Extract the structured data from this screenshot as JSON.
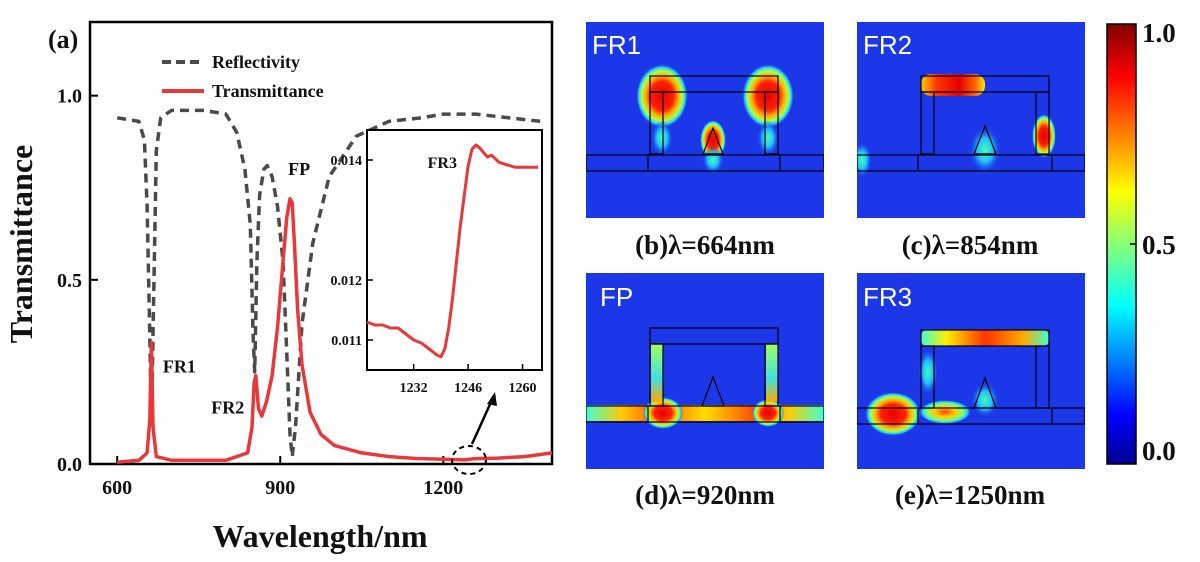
{
  "chart_data": [
    {
      "panel": "(a)",
      "type": "line",
      "xlabel": "Wavelength/nm",
      "ylabel": "Transmittance",
      "xlim": [
        550,
        1400
      ],
      "ylim": [
        0,
        1.2
      ],
      "xticks": [
        600,
        900,
        1200
      ],
      "xtick_labels": [
        "600",
        "900",
        "1200"
      ],
      "yticks": [
        0,
        0.5,
        1.0
      ],
      "ytick_labels": [
        "0.0",
        "0.5",
        "1.0"
      ],
      "legend_position": "top-left",
      "series": [
        {
          "name": "Reflectivity",
          "style": "dashed",
          "color": "#4a4a4a",
          "x": [
            600,
            640,
            650,
            655,
            660,
            663,
            666,
            672,
            680,
            700,
            760,
            800,
            820,
            835,
            845,
            850,
            853,
            857,
            862,
            870,
            876,
            885,
            895,
            905,
            912,
            918,
            922,
            928,
            940,
            960,
            990,
            1040,
            1100,
            1160,
            1200,
            1260,
            1320,
            1380
          ],
          "values": [
            0.94,
            0.93,
            0.88,
            0.7,
            0.35,
            0.1,
            0.35,
            0.85,
            0.94,
            0.96,
            0.96,
            0.95,
            0.9,
            0.8,
            0.65,
            0.35,
            0.25,
            0.55,
            0.73,
            0.8,
            0.81,
            0.78,
            0.7,
            0.55,
            0.3,
            0.08,
            0.02,
            0.1,
            0.38,
            0.6,
            0.78,
            0.89,
            0.93,
            0.94,
            0.95,
            0.95,
            0.94,
            0.93
          ]
        },
        {
          "name": "Transmittance",
          "style": "solid",
          "color": "#e8383a",
          "x": [
            600,
            640,
            655,
            660,
            663,
            666,
            672,
            700,
            800,
            840,
            848,
            852,
            855,
            860,
            866,
            875,
            885,
            895,
            905,
            912,
            918,
            922,
            926,
            932,
            940,
            955,
            975,
            1000,
            1050,
            1100,
            1150,
            1200,
            1240,
            1255,
            1300,
            1350,
            1400
          ],
          "values": [
            0.005,
            0.01,
            0.03,
            0.12,
            0.33,
            0.1,
            0.02,
            0.01,
            0.01,
            0.03,
            0.1,
            0.22,
            0.24,
            0.15,
            0.13,
            0.17,
            0.24,
            0.37,
            0.55,
            0.67,
            0.72,
            0.71,
            0.6,
            0.42,
            0.27,
            0.14,
            0.08,
            0.05,
            0.03,
            0.02,
            0.015,
            0.013,
            0.011,
            0.0142,
            0.016,
            0.02,
            0.03
          ]
        }
      ],
      "annotations": [
        {
          "text": "FR1",
          "x": 663,
          "y": 0.33
        },
        {
          "text": "FR2",
          "x": 855,
          "y": 0.24
        },
        {
          "text": "FP",
          "x": 920,
          "y": 0.72
        }
      ]
    },
    {
      "panel": "inset",
      "type": "line",
      "xlim": [
        1220,
        1265
      ],
      "ylim": [
        0.0105,
        0.0145
      ],
      "xticks": [
        1232,
        1246,
        1260
      ],
      "xtick_labels": [
        "1232",
        "1246",
        "1260"
      ],
      "yticks": [
        0.011,
        0.012,
        0.014
      ],
      "ytick_labels": [
        "0.011",
        "0.012",
        "0.014"
      ],
      "series": [
        {
          "name": "Transmittance",
          "color": "#e8383a",
          "x": [
            1220,
            1222,
            1224,
            1226,
            1228,
            1230,
            1232,
            1234,
            1236,
            1238,
            1239,
            1240,
            1241,
            1242,
            1243,
            1244,
            1245,
            1246,
            1247,
            1248,
            1249,
            1250,
            1251,
            1252,
            1253,
            1254,
            1256,
            1258,
            1260,
            1262,
            1264
          ],
          "values": [
            0.0113,
            0.01125,
            0.01125,
            0.0112,
            0.0112,
            0.0111,
            0.011,
            0.01095,
            0.01085,
            0.01075,
            0.01072,
            0.01085,
            0.0112,
            0.0117,
            0.0123,
            0.0129,
            0.0134,
            0.0139,
            0.01418,
            0.01425,
            0.0142,
            0.01412,
            0.01405,
            0.01408,
            0.01402,
            0.01396,
            0.01392,
            0.01388,
            0.01388,
            0.01388,
            0.01388
          ]
        }
      ],
      "annotations": [
        {
          "text": "FR3",
          "x": 1244,
          "y": 0.0139
        }
      ]
    },
    {
      "panel": "field-maps",
      "type": "heatmap",
      "colorbar": {
        "min": 0,
        "max": 1,
        "tick_labels": [
          "1.0",
          "0.5",
          "0.0"
        ]
      },
      "maps": [
        {
          "title": "FR1",
          "caption": "(b)λ=664nm"
        },
        {
          "title": "FR2",
          "caption": "(c)λ=854nm"
        },
        {
          "title": "FP",
          "caption": "(d)λ=920nm"
        },
        {
          "title": "FR3",
          "caption": "(e)λ=1250nm"
        }
      ]
    }
  ],
  "colors": {
    "reflectivity": "#4a4a4a",
    "transmittance": "#e8383a",
    "field_background": "#1c37e8",
    "colormap": [
      "#00008f",
      "#0000ff",
      "#00ffff",
      "#ffff00",
      "#ff0000",
      "#800000"
    ]
  },
  "labels": {
    "panel_a": "(a)",
    "legend_reflectivity": "Reflectivity",
    "legend_transmittance": "Transmittance"
  }
}
